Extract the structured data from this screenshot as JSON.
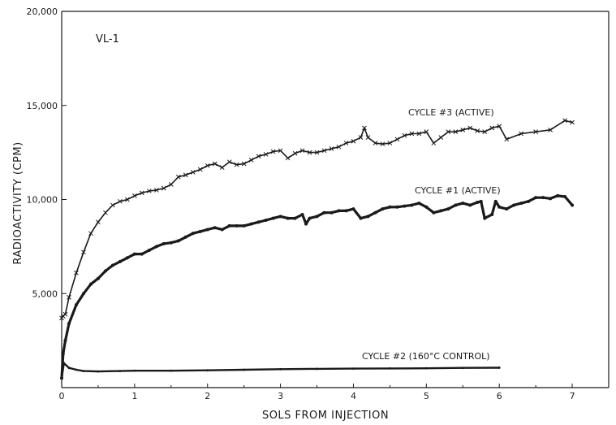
{
  "chart_data": {
    "type": "line",
    "title": "",
    "annotation": "VL-1",
    "xlabel": "SOLS FROM INJECTION",
    "ylabel": "RADIOACTIVITY (CPM)",
    "xlim": [
      0,
      7.5
    ],
    "ylim": [
      0,
      20000
    ],
    "x_ticks": [
      "0",
      "1",
      "2",
      "3",
      "4",
      "5",
      "6",
      "7"
    ],
    "y_ticks": [
      "5,000",
      "10,000",
      "15,000",
      "20,000"
    ],
    "grid": false,
    "series": [
      {
        "name": "CYCLE #3 (ACTIVE)",
        "x": [
          0,
          0.02,
          0.05,
          0.1,
          0.2,
          0.3,
          0.4,
          0.5,
          0.6,
          0.7,
          0.8,
          0.9,
          1.0,
          1.1,
          1.2,
          1.3,
          1.4,
          1.5,
          1.6,
          1.7,
          1.8,
          1.9,
          2.0,
          2.1,
          2.2,
          2.3,
          2.4,
          2.5,
          2.6,
          2.7,
          2.8,
          2.9,
          3.0,
          3.1,
          3.2,
          3.3,
          3.4,
          3.5,
          3.6,
          3.7,
          3.8,
          3.9,
          4.0,
          4.1,
          4.15,
          4.2,
          4.3,
          4.4,
          4.5,
          4.6,
          4.7,
          4.8,
          4.9,
          5.0,
          5.1,
          5.2,
          5.3,
          5.4,
          5.5,
          5.6,
          5.7,
          5.8,
          5.9,
          6.0,
          6.1,
          6.3,
          6.5,
          6.7,
          6.9,
          7.0
        ],
        "y": [
          3700,
          3800,
          3900,
          4800,
          6100,
          7200,
          8200,
          8800,
          9300,
          9700,
          9900,
          10000,
          10200,
          10350,
          10450,
          10500,
          10600,
          10800,
          11200,
          11300,
          11450,
          11600,
          11800,
          11900,
          11700,
          12000,
          11850,
          11900,
          12100,
          12300,
          12400,
          12550,
          12600,
          12200,
          12450,
          12600,
          12500,
          12500,
          12600,
          12700,
          12800,
          13000,
          13100,
          13300,
          13800,
          13300,
          13000,
          12950,
          13000,
          13200,
          13400,
          13500,
          13500,
          13600,
          13000,
          13300,
          13600,
          13600,
          13700,
          13800,
          13650,
          13600,
          13800,
          13900,
          13200,
          13500,
          13600,
          13700,
          14200,
          14100
        ]
      },
      {
        "name": "CYCLE #1 (ACTIVE)",
        "x": [
          0,
          0.02,
          0.05,
          0.1,
          0.2,
          0.3,
          0.4,
          0.5,
          0.6,
          0.7,
          0.8,
          0.9,
          1.0,
          1.1,
          1.2,
          1.3,
          1.4,
          1.5,
          1.6,
          1.7,
          1.8,
          1.9,
          2.0,
          2.1,
          2.2,
          2.3,
          2.4,
          2.5,
          2.6,
          2.7,
          2.8,
          2.9,
          3.0,
          3.1,
          3.2,
          3.3,
          3.35,
          3.4,
          3.5,
          3.6,
          3.7,
          3.8,
          3.9,
          4.0,
          4.1,
          4.2,
          4.3,
          4.4,
          4.5,
          4.6,
          4.7,
          4.8,
          4.9,
          5.0,
          5.1,
          5.2,
          5.3,
          5.4,
          5.5,
          5.6,
          5.7,
          5.75,
          5.8,
          5.9,
          5.95,
          6.0,
          6.1,
          6.2,
          6.3,
          6.4,
          6.5,
          6.6,
          6.7,
          6.8,
          6.9,
          7.0
        ],
        "y": [
          500,
          1800,
          2500,
          3400,
          4400,
          5000,
          5500,
          5800,
          6200,
          6500,
          6700,
          6900,
          7100,
          7100,
          7300,
          7500,
          7650,
          7700,
          7800,
          8000,
          8200,
          8300,
          8400,
          8500,
          8400,
          8600,
          8600,
          8600,
          8700,
          8800,
          8900,
          9000,
          9100,
          9000,
          9000,
          9200,
          8700,
          9000,
          9100,
          9300,
          9300,
          9400,
          9400,
          9500,
          9000,
          9100,
          9300,
          9500,
          9600,
          9600,
          9650,
          9700,
          9800,
          9600,
          9300,
          9400,
          9500,
          9700,
          9800,
          9700,
          9850,
          9900,
          9000,
          9200,
          9900,
          9600,
          9500,
          9700,
          9800,
          9900,
          10100,
          10100,
          10050,
          10200,
          10150,
          9700
        ]
      },
      {
        "name": "CYCLE #2 (160°C CONTROL)",
        "x": [
          0,
          0.03,
          0.1,
          0.2,
          0.3,
          0.5,
          0.8,
          1.0,
          1.5,
          2.0,
          2.5,
          3.0,
          3.5,
          4.0,
          4.5,
          5.0,
          5.5,
          6.0
        ],
        "y": [
          500,
          1300,
          1050,
          950,
          880,
          860,
          880,
          900,
          900,
          920,
          950,
          980,
          1000,
          1010,
          1020,
          1030,
          1050,
          1060
        ]
      }
    ]
  }
}
